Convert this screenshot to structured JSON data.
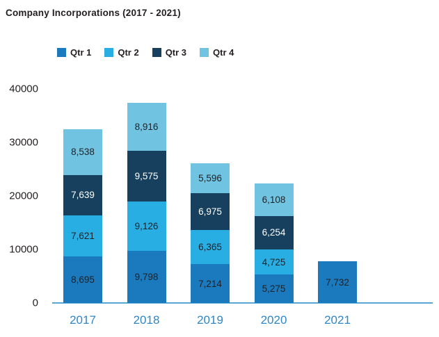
{
  "title": "Company Incorporations (2017 - 2021)",
  "chart_data": {
    "type": "bar",
    "stacked": true,
    "title": "Company Incorporations (2017 - 2021)",
    "categories": [
      "2017",
      "2018",
      "2019",
      "2020",
      "2021"
    ],
    "series": [
      {
        "name": "Qtr 1",
        "color": "#1B7ABD",
        "label_color": "#1E2126",
        "values": [
          8695,
          9798,
          7214,
          5275,
          7732
        ]
      },
      {
        "name": "Qtr 2",
        "color": "#29AEE4",
        "label_color": "#1E2126",
        "values": [
          7621,
          9126,
          6365,
          4725,
          null
        ]
      },
      {
        "name": "Qtr 3",
        "color": "#17405E",
        "label_color": "#FFFFFF",
        "values": [
          7639,
          9575,
          6975,
          6254,
          null
        ]
      },
      {
        "name": "Qtr 4",
        "color": "#70C4E2",
        "label_color": "#1E2126",
        "values": [
          8538,
          8916,
          5596,
          6108,
          null
        ]
      }
    ],
    "totals": [
      32493,
      37415,
      26150,
      22362,
      7732
    ],
    "ylim": [
      0,
      40000
    ],
    "y_ticks": [
      0,
      10000,
      20000,
      30000,
      40000
    ],
    "grid": false,
    "legend_position": "top-left",
    "value_label_format": "thousands-comma",
    "xlabel": "",
    "ylabel": ""
  },
  "colors": {
    "title_text": "#231F20",
    "legend_text": "#231F20",
    "y_tick_text": "#231F20",
    "x_label_text": "#2E86C5",
    "axis_line": "#57A7D4",
    "background": "#FFFFFF"
  }
}
